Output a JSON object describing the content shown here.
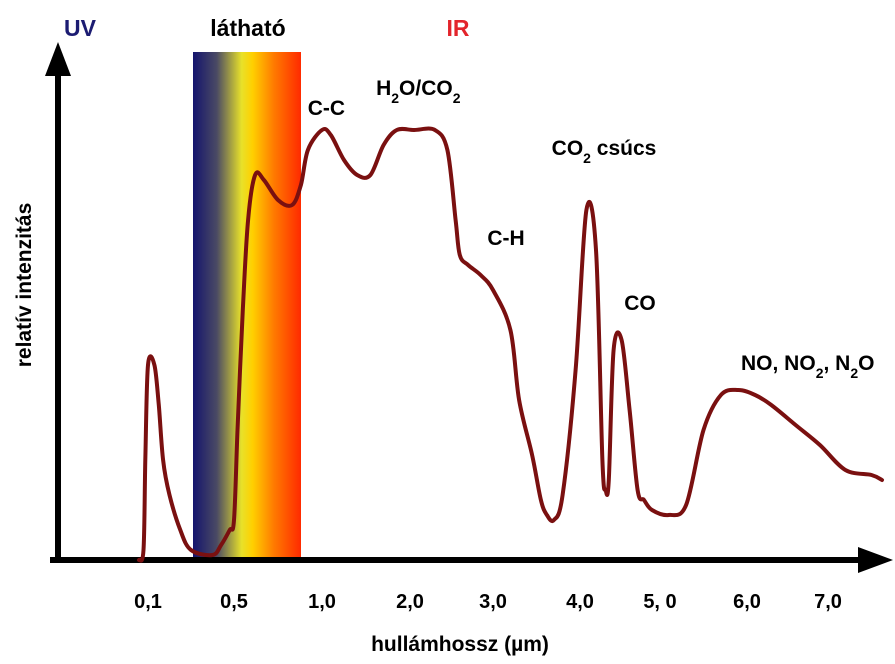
{
  "chart_data": {
    "type": "line",
    "title": "",
    "xlabel": "hullámhossz (µm)",
    "ylabel": "relatív intenzitás",
    "x_ticks": [
      "0,1",
      "0,5",
      "1,0",
      "2,0",
      "3,0",
      "4,0",
      "5, 0",
      "6,0",
      "7,0"
    ],
    "x_tick_positions": [
      0.1,
      0.5,
      1.0,
      2.0,
      3.0,
      4.0,
      5.0,
      6.0,
      7.0
    ],
    "xlim": [
      -0.9,
      7.62
    ],
    "ylim": [
      0,
      1
    ],
    "region_labels": [
      {
        "text": "UV",
        "color": "#1c1c72"
      },
      {
        "text": "látható",
        "color": "#000000"
      },
      {
        "text": "IR",
        "color": "#e3242b"
      }
    ],
    "visible_band": {
      "x_start": 0.29,
      "x_end": 0.88
    },
    "peak_labels": [
      {
        "text": "C-C",
        "x": 1.05,
        "y": 0.89
      },
      {
        "text": "H2O/CO2",
        "x": 2.1,
        "y": 0.93
      },
      {
        "text": "CO2 csúcs",
        "x": 4.3,
        "y": 0.81
      },
      {
        "text": "C-H",
        "x": 3.15,
        "y": 0.63
      },
      {
        "text": "CO",
        "x": 4.75,
        "y": 0.5
      },
      {
        "text": "NO, NO2, N2O",
        "x": 6.75,
        "y": 0.38
      }
    ],
    "series": [
      {
        "color": "#7a1010",
        "x": [
          0.0,
          0.05,
          0.07,
          0.1,
          0.13,
          0.15,
          0.17,
          0.2,
          0.25,
          0.3,
          0.4,
          0.44,
          0.48,
          0.5,
          0.52,
          0.55,
          0.58,
          0.62,
          0.67,
          0.75,
          0.83,
          0.88,
          0.92,
          1.0,
          1.1,
          1.25,
          1.4,
          1.55,
          1.7,
          1.85,
          2.05,
          2.3,
          2.45,
          2.55,
          2.6,
          2.7,
          2.85,
          3.0,
          3.2,
          3.3,
          3.45,
          3.55,
          3.62,
          3.7,
          3.8,
          3.95,
          4.08,
          4.2,
          4.28,
          4.32,
          4.36,
          4.42,
          4.52,
          4.62,
          4.72,
          4.8,
          4.9,
          5.1,
          5.3,
          5.5,
          5.7,
          5.9,
          6.1,
          6.3,
          6.6,
          6.9,
          7.2,
          7.5,
          7.62
        ],
        "y": [
          0.0,
          0.02,
          0.2,
          0.39,
          0.39,
          0.31,
          0.2,
          0.13,
          0.06,
          0.02,
          0.01,
          0.03,
          0.06,
          0.08,
          0.26,
          0.5,
          0.68,
          0.77,
          0.76,
          0.72,
          0.71,
          0.75,
          0.82,
          0.86,
          0.85,
          0.8,
          0.77,
          0.77,
          0.83,
          0.86,
          0.86,
          0.86,
          0.82,
          0.68,
          0.61,
          0.59,
          0.57,
          0.54,
          0.46,
          0.32,
          0.21,
          0.12,
          0.09,
          0.08,
          0.13,
          0.38,
          0.7,
          0.62,
          0.2,
          0.14,
          0.16,
          0.42,
          0.44,
          0.3,
          0.14,
          0.12,
          0.1,
          0.09,
          0.11,
          0.26,
          0.33,
          0.34,
          0.33,
          0.31,
          0.27,
          0.23,
          0.18,
          0.17,
          0.16
        ]
      }
    ],
    "grid": false,
    "legend": "none"
  }
}
